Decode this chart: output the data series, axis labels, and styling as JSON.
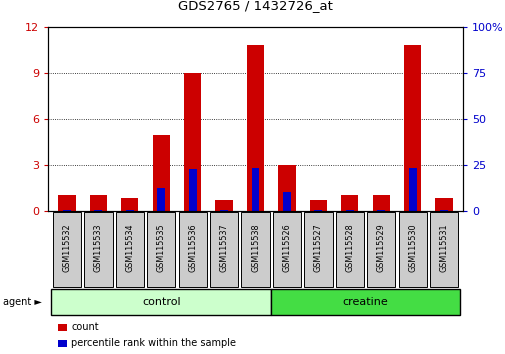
{
  "title": "GDS2765 / 1432726_at",
  "samples": [
    "GSM115532",
    "GSM115533",
    "GSM115534",
    "GSM115535",
    "GSM115536",
    "GSM115537",
    "GSM115538",
    "GSM115526",
    "GSM115527",
    "GSM115528",
    "GSM115529",
    "GSM115530",
    "GSM115531"
  ],
  "count_values": [
    1.0,
    1.0,
    0.8,
    4.9,
    9.0,
    0.7,
    10.8,
    3.0,
    0.7,
    1.0,
    1.0,
    10.8,
    0.8
  ],
  "percentile_values": [
    0.5,
    0.5,
    0.5,
    12.5,
    22.5,
    0.5,
    23.3,
    10.0,
    0.5,
    0.5,
    0.5,
    23.3,
    0.5
  ],
  "count_color": "#cc0000",
  "percentile_color": "#0000cc",
  "ylim_left": [
    0,
    12
  ],
  "ylim_right": [
    0,
    100
  ],
  "yticks_left": [
    0,
    3,
    6,
    9,
    12
  ],
  "yticks_right": [
    0,
    25,
    50,
    75,
    100
  ],
  "ytick_labels_right": [
    "0",
    "25",
    "50",
    "75",
    "100%"
  ],
  "groups": [
    {
      "label": "control",
      "start": 0,
      "end": 7,
      "color": "#ccffcc"
    },
    {
      "label": "creatine",
      "start": 7,
      "end": 13,
      "color": "#44dd44"
    }
  ],
  "group_row_label": "agent",
  "legend": [
    {
      "label": "count",
      "color": "#cc0000"
    },
    {
      "label": "percentile rank within the sample",
      "color": "#0000cc"
    }
  ],
  "background_color": "#ffffff",
  "tick_label_color_left": "#cc0000",
  "tick_label_color_right": "#0000cc",
  "n_control": 7,
  "n_creatine": 6
}
